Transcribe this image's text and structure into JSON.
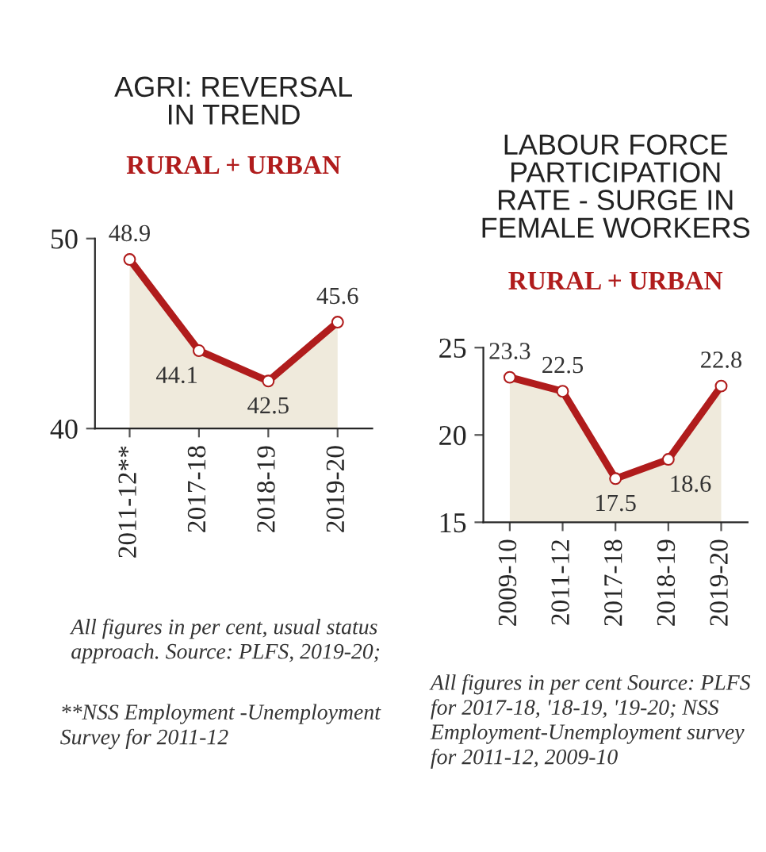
{
  "chart_data": [
    {
      "type": "area",
      "title": "AGRI: REVERSAL\nIN TREND",
      "subtitle": "RURAL + URBAN",
      "categories": [
        "2011-12**",
        "2017-18",
        "2018-19",
        "2019-20"
      ],
      "series": [
        {
          "color": "#b01c1c",
          "values": [
            48.9,
            44.1,
            42.5,
            45.6
          ]
        }
      ],
      "ylim": [
        40,
        50
      ],
      "yticks": [
        40,
        50
      ],
      "data_labels": true,
      "marker": "circle",
      "grid": false,
      "legend": false,
      "annotations": [
        "All figures in per cent, usual status approach. Source: PLFS, 2019-20;",
        "**NSS Employment -Unemployment Survey for 2011-12"
      ]
    },
    {
      "type": "area",
      "title": "LABOUR FORCE\nPARTICIPATION\nRATE - SURGE IN\nFEMALE WORKERS",
      "subtitle": "RURAL + URBAN",
      "categories": [
        "2009-10",
        "2011-12",
        "2017-18",
        "2018-19",
        "2019-20"
      ],
      "series": [
        {
          "color": "#b01c1c",
          "values": [
            23.3,
            22.5,
            17.5,
            18.6,
            22.8
          ]
        }
      ],
      "ylim": [
        15,
        25
      ],
      "yticks": [
        15,
        20,
        25
      ],
      "data_labels": true,
      "marker": "circle",
      "grid": false,
      "legend": false,
      "annotations": [
        "All figures in per cent Source: PLFS for 2017-18, '18-19, '19-20; NSS Employment-Unemployment survey for 2011-12, 2009-10"
      ]
    }
  ]
}
